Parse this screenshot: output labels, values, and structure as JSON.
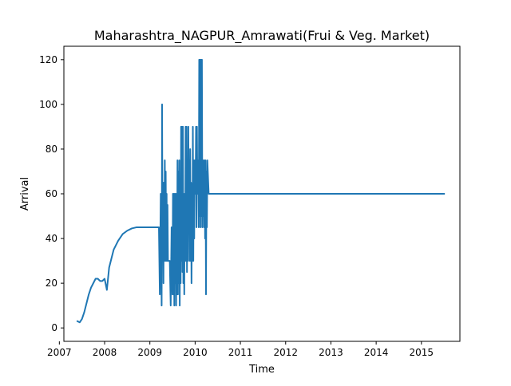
{
  "chart_data": {
    "type": "line",
    "title": "Maharashtra_NAGPUR_Amrawati(Frui & Veg. Market)",
    "xlabel": "Time",
    "ylabel": "Arrival",
    "xlim": [
      2007.1,
      2015.85
    ],
    "ylim": [
      -6,
      126
    ],
    "x_ticks": [
      2007,
      2008,
      2009,
      2010,
      2011,
      2012,
      2013,
      2014,
      2015
    ],
    "x_tick_labels": [
      "2007",
      "2008",
      "2009",
      "2010",
      "2011",
      "2012",
      "2013",
      "2014",
      "2015"
    ],
    "y_ticks": [
      0,
      20,
      40,
      60,
      80,
      100,
      120
    ],
    "y_tick_labels": [
      "0",
      "20",
      "40",
      "60",
      "80",
      "100",
      "120"
    ],
    "grid": false,
    "legend": "none",
    "colors": {
      "line": "#1f77b4"
    },
    "series": [
      {
        "x": [
          2007.4,
          2007.45,
          2007.5,
          2007.55,
          2007.6,
          2007.65,
          2007.7,
          2007.75,
          2007.8,
          2007.85,
          2007.9,
          2007.95,
          2008.0,
          2008.05,
          2008.07,
          2008.09,
          2008.1,
          2008.15,
          2008.2,
          2008.3,
          2008.4,
          2008.5,
          2008.6,
          2008.7,
          2008.8,
          2008.9,
          2009.0,
          2009.1,
          2009.2,
          2009.22,
          2009.24,
          2009.26,
          2009.27,
          2009.28,
          2009.29,
          2009.3,
          2009.31,
          2009.32,
          2009.33,
          2009.34,
          2009.35,
          2009.36,
          2009.37,
          2009.38,
          2009.39,
          2009.4,
          2009.42,
          2009.44,
          2009.46,
          2009.48,
          2009.5,
          2009.51,
          2009.52,
          2009.53,
          2009.54,
          2009.55,
          2009.56,
          2009.57,
          2009.58,
          2009.59,
          2009.6,
          2009.61,
          2009.62,
          2009.63,
          2009.64,
          2009.65,
          2009.66,
          2009.67,
          2009.68,
          2009.69,
          2009.7,
          2009.71,
          2009.72,
          2009.73,
          2009.74,
          2009.75,
          2009.76,
          2009.77,
          2009.78,
          2009.79,
          2009.8,
          2009.81,
          2009.82,
          2009.83,
          2009.84,
          2009.85,
          2009.86,
          2009.87,
          2009.88,
          2009.89,
          2009.9,
          2009.91,
          2009.92,
          2009.93,
          2009.94,
          2009.95,
          2009.96,
          2009.97,
          2009.98,
          2009.99,
          2010.0,
          2010.01,
          2010.02,
          2010.03,
          2010.04,
          2010.05,
          2010.06,
          2010.07,
          2010.08,
          2010.09,
          2010.1,
          2010.11,
          2010.12,
          2010.13,
          2010.14,
          2010.15,
          2010.16,
          2010.17,
          2010.18,
          2010.19,
          2010.2,
          2010.21,
          2010.22,
          2010.23,
          2010.24,
          2010.25,
          2010.26,
          2010.27,
          2010.3,
          2011.0,
          2012.0,
          2013.0,
          2014.0,
          2015.0,
          2015.5
        ],
        "y": [
          3,
          2.5,
          4,
          7,
          11,
          15,
          18,
          20,
          22,
          22,
          21,
          21,
          22,
          17,
          21,
          25,
          27,
          31,
          35,
          39,
          42,
          43.5,
          44.5,
          45,
          45,
          45,
          45,
          45,
          45,
          15,
          60,
          10,
          100,
          30,
          65,
          20,
          65,
          30,
          75,
          30,
          70,
          30,
          60,
          30,
          55,
          30,
          30,
          30,
          10,
          45,
          15,
          60,
          15,
          60,
          10,
          60,
          20,
          60,
          10,
          60,
          15,
          75,
          15,
          70,
          20,
          75,
          10,
          60,
          20,
          90,
          30,
          90,
          25,
          90,
          20,
          60,
          15,
          60,
          30,
          90,
          30,
          90,
          25,
          70,
          30,
          90,
          45,
          75,
          30,
          80,
          30,
          65,
          20,
          60,
          30,
          90,
          30,
          75,
          40,
          75,
          60,
          60,
          90,
          45,
          90,
          60,
          60,
          75,
          45,
          120,
          50,
          120,
          45,
          120,
          50,
          120,
          45,
          75,
          50,
          75,
          45,
          75,
          40,
          75,
          15,
          70,
          45,
          75,
          60,
          60,
          60,
          60,
          60,
          60,
          60
        ]
      }
    ]
  }
}
